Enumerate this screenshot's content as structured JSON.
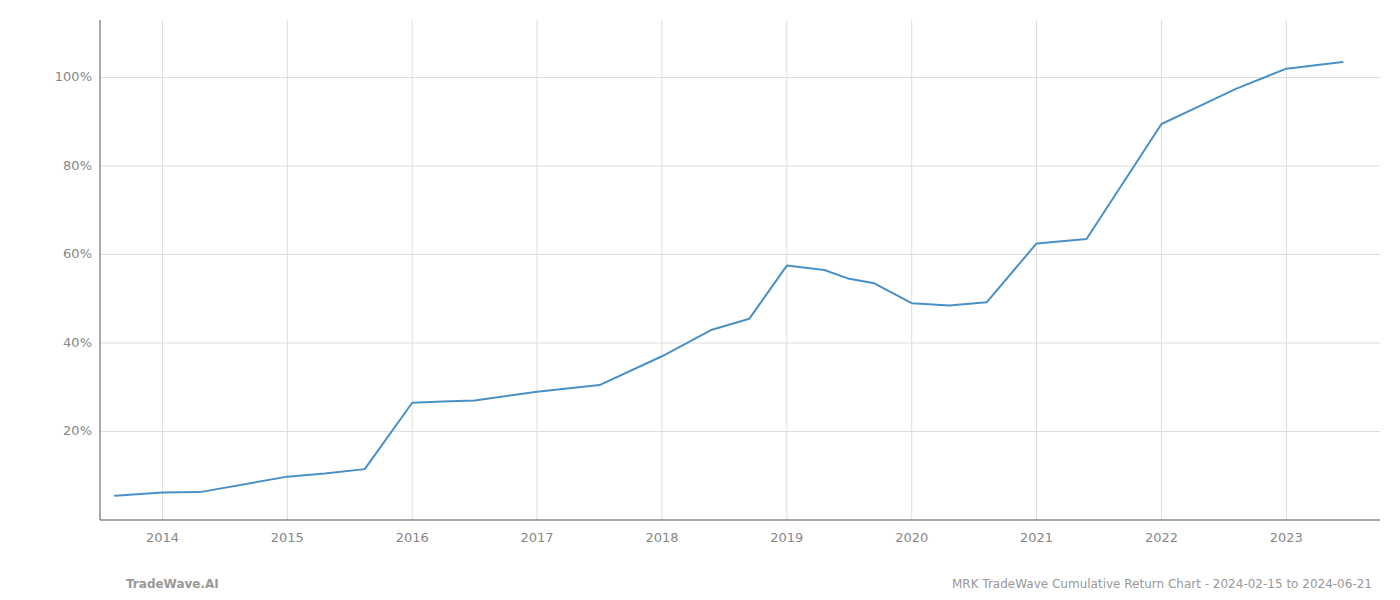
{
  "chart_data": {
    "type": "line",
    "x": [
      2013.62,
      2014.0,
      2014.3,
      2015.0,
      2015.3,
      2015.62,
      2016.0,
      2016.25,
      2016.5,
      2017.0,
      2017.5,
      2018.0,
      2018.4,
      2018.7,
      2019.0,
      2019.3,
      2019.5,
      2019.7,
      2020.0,
      2020.3,
      2020.6,
      2021.0,
      2021.4,
      2022.0,
      2022.3,
      2022.6,
      2023.0,
      2023.45
    ],
    "values": [
      0.055,
      0.062,
      0.063,
      0.098,
      0.105,
      0.115,
      0.265,
      0.268,
      0.27,
      0.29,
      0.305,
      0.37,
      0.43,
      0.455,
      0.575,
      0.565,
      0.545,
      0.535,
      0.49,
      0.485,
      0.492,
      0.625,
      0.635,
      0.895,
      0.935,
      0.975,
      1.02,
      1.035
    ],
    "color": "#4a90c4",
    "xlim": [
      2013.5,
      2023.75
    ],
    "xticks": [
      2014,
      2015,
      2016,
      2017,
      2018,
      2019,
      2020,
      2021,
      2022,
      2023
    ],
    "ylim": [
      0.0,
      1.13
    ],
    "yticks": [
      {
        "value": 0.2,
        "label": "20%"
      },
      {
        "value": 0.4,
        "label": "40%"
      },
      {
        "value": 0.6,
        "label": "60%"
      },
      {
        "value": 0.8,
        "label": "80%"
      },
      {
        "value": 1.0,
        "label": "100%"
      }
    ],
    "grid": true,
    "annotations": [
      "TradeWave.AI",
      "MRK TradeWave Cumulative Return Chart - 2024-02-15 to 2024-06-21"
    ]
  }
}
